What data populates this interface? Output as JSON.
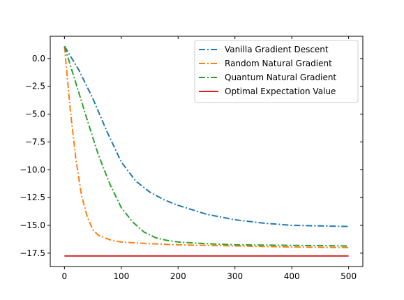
{
  "chart_data": {
    "type": "line",
    "title": "",
    "xlabel": "",
    "ylabel": "",
    "xlim": [
      -25,
      525
    ],
    "ylim": [
      -18.7,
      2.0
    ],
    "x_ticks": [
      0,
      100,
      200,
      300,
      400,
      500
    ],
    "y_ticks": [
      0.0,
      -2.5,
      -5.0,
      -7.5,
      -10.0,
      -12.5,
      -15.0,
      -17.5
    ],
    "x_tick_labels": [
      "0",
      "100",
      "200",
      "300",
      "400",
      "500"
    ],
    "y_tick_labels": [
      "0.0",
      "−2.5",
      "−5.0",
      "−7.5",
      "−10.0",
      "−12.5",
      "−15.0",
      "−17.5"
    ],
    "grid": false,
    "legend_position": "top-right",
    "series": [
      {
        "name": "Vanilla Gradient Descent",
        "color": "#1f77b4",
        "style": "dashdot",
        "x": [
          0,
          25,
          50,
          75,
          100,
          125,
          150,
          175,
          200,
          250,
          300,
          350,
          400,
          450,
          500
        ],
        "y": [
          1.1,
          -1.0,
          -3.6,
          -6.6,
          -9.3,
          -11.0,
          -12.0,
          -12.7,
          -13.2,
          -14.0,
          -14.5,
          -14.8,
          -15.0,
          -15.05,
          -15.1
        ]
      },
      {
        "name": "Random Natural Gradient",
        "color": "#ff7f0e",
        "style": "dashdot",
        "x": [
          0,
          10,
          20,
          30,
          40,
          50,
          60,
          80,
          100,
          150,
          200,
          300,
          400,
          500
        ],
        "y": [
          1.1,
          -4.5,
          -9.0,
          -12.3,
          -14.2,
          -15.4,
          -15.9,
          -16.3,
          -16.5,
          -16.65,
          -16.75,
          -16.85,
          -16.95,
          -17.0
        ]
      },
      {
        "name": "Quantum Natural Gradient",
        "color": "#2ca02c",
        "style": "dashdot",
        "x": [
          0,
          20,
          40,
          60,
          80,
          100,
          120,
          140,
          160,
          180,
          200,
          250,
          300,
          400,
          500
        ],
        "y": [
          1.1,
          -2.2,
          -5.5,
          -8.7,
          -11.3,
          -13.4,
          -14.7,
          -15.6,
          -16.1,
          -16.35,
          -16.5,
          -16.65,
          -16.75,
          -16.8,
          -16.85
        ]
      },
      {
        "name": "Optimal Expectation Value",
        "color": "#d62728",
        "style": "solid",
        "x": [
          0,
          500
        ],
        "y": [
          -17.75,
          -17.75
        ]
      }
    ]
  }
}
